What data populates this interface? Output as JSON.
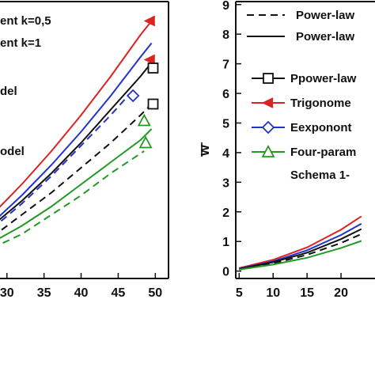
{
  "chart_data": [
    {
      "type": "line",
      "panel": "left",
      "title": "",
      "xlabel": "",
      "ylabel": "",
      "xlim": [
        28,
        50.5
      ],
      "ylim": [
        0,
        10
      ],
      "xticks": [
        "30",
        "35",
        "40",
        "45",
        "50"
      ],
      "legend": {
        "placement": "top-left",
        "entries": [
          "ent k=0,5",
          "ent k=1",
          "del",
          "odel"
        ]
      },
      "series": [
        {
          "style": "solid",
          "color": "#dd2222",
          "x": [
            28,
            32,
            36,
            40,
            44,
            48,
            49.5
          ],
          "y": [
            2.3,
            3.4,
            4.6,
            5.9,
            7.3,
            8.8,
            9.3
          ]
        },
        {
          "style": "dashed",
          "color": "#dd2222",
          "x": [
            49.5
          ],
          "y": [
            7.8
          ]
        },
        {
          "style": "solid",
          "color": "#2233cc",
          "x": [
            28,
            32,
            36,
            40,
            44,
            48,
            49.5
          ],
          "y": [
            2.0,
            3.0,
            4.1,
            5.3,
            6.6,
            8.0,
            8.5
          ]
        },
        {
          "style": "dashed",
          "color": "#2233cc",
          "x": [
            28,
            32,
            36,
            40,
            44,
            47
          ],
          "y": [
            1.8,
            2.7,
            3.7,
            4.8,
            5.9,
            6.8
          ]
        },
        {
          "style": "solid",
          "color": "#111111",
          "x": [
            28,
            32,
            36,
            40,
            44,
            48,
            49.5
          ],
          "y": [
            1.9,
            2.8,
            3.8,
            4.9,
            6.1,
            7.3,
            7.8
          ]
        },
        {
          "style": "dashed",
          "color": "#111111",
          "x": [
            28,
            32,
            36,
            40,
            44,
            48,
            49.5
          ],
          "y": [
            1.5,
            2.3,
            3.1,
            4.0,
            4.9,
            5.9,
            6.3
          ]
        },
        {
          "style": "solid",
          "color": "#229922",
          "x": [
            28,
            32,
            36,
            40,
            44,
            48,
            49.5
          ],
          "y": [
            1.3,
            1.9,
            2.6,
            3.4,
            4.2,
            5.0,
            5.4
          ]
        },
        {
          "style": "dashed",
          "color": "#229922",
          "x": [
            28,
            32,
            36,
            40,
            44,
            48.5
          ],
          "y": [
            1.1,
            1.6,
            2.3,
            3.0,
            3.8,
            4.6
          ]
        }
      ],
      "markers": [
        {
          "shape": "trig",
          "color": "#dd2222",
          "x": 49.3,
          "y": 9.3
        },
        {
          "shape": "trig",
          "color": "#dd2222",
          "x": 49.3,
          "y": 7.9
        },
        {
          "shape": "square",
          "color": "#111111",
          "x": 49.7,
          "y": 7.6
        },
        {
          "shape": "square",
          "color": "#111111",
          "x": 49.7,
          "y": 6.3
        },
        {
          "shape": "diamond",
          "color": "#2233cc",
          "x": 47,
          "y": 6.6
        },
        {
          "shape": "triangle",
          "color": "#229922",
          "x": 48.5,
          "y": 5.7
        },
        {
          "shape": "triangle",
          "color": "#229922",
          "x": 48.7,
          "y": 4.9
        }
      ]
    },
    {
      "type": "line",
      "panel": "right",
      "title": "",
      "xlabel": "",
      "ylabel": "w",
      "xlim": [
        4.5,
        25
      ],
      "ylim": [
        -0.25,
        9.1
      ],
      "xticks": [
        "5",
        "10",
        "15",
        "20"
      ],
      "yticks": [
        "0",
        "1",
        "2",
        "3",
        "4",
        "5",
        "6",
        "7",
        "8",
        "9"
      ],
      "legend": {
        "placement": "top-left",
        "entries": [
          {
            "label": "Power-law",
            "style": "dashed",
            "color": "#111111",
            "marker": ""
          },
          {
            "label": "Power-law",
            "style": "solid",
            "color": "#111111",
            "marker": ""
          },
          {
            "label": "Ppower-law",
            "style": "solid",
            "color": "#111111",
            "marker": "square"
          },
          {
            "label": "Trigonome",
            "style": "solid",
            "color": "#dd2222",
            "marker": "trig"
          },
          {
            "label": "Eexponont",
            "style": "solid",
            "color": "#2233cc",
            "marker": "diamond"
          },
          {
            "label": "Four-param",
            "style": "solid",
            "color": "#229922",
            "marker": "triangle"
          },
          {
            "label": "Schema 1-",
            "style": "none",
            "color": "#111111",
            "marker": ""
          }
        ]
      },
      "series": [
        {
          "style": "solid",
          "color": "#dd2222",
          "x": [
            5,
            10,
            15,
            20,
            23
          ],
          "y": [
            0.1,
            0.38,
            0.8,
            1.4,
            1.85
          ]
        },
        {
          "style": "solid",
          "color": "#2233cc",
          "x": [
            5,
            10,
            15,
            20,
            23
          ],
          "y": [
            0.08,
            0.33,
            0.7,
            1.22,
            1.6
          ]
        },
        {
          "style": "solid",
          "color": "#111111",
          "x": [
            5,
            10,
            15,
            20,
            23
          ],
          "y": [
            0.07,
            0.3,
            0.62,
            1.08,
            1.42
          ]
        },
        {
          "style": "dashed",
          "color": "#111111",
          "x": [
            5,
            10,
            15,
            20,
            23
          ],
          "y": [
            0.06,
            0.26,
            0.55,
            0.95,
            1.25
          ]
        },
        {
          "style": "solid",
          "color": "#229922",
          "x": [
            5,
            10,
            15,
            20,
            23
          ],
          "y": [
            0.05,
            0.22,
            0.45,
            0.78,
            1.02
          ]
        }
      ]
    }
  ]
}
